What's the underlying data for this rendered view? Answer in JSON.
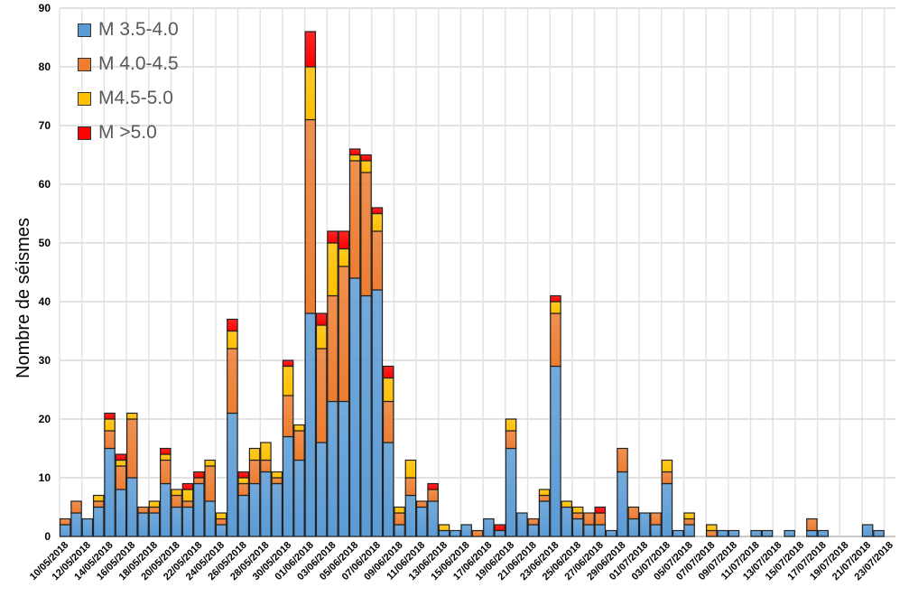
{
  "chart_data": {
    "type": "bar",
    "stacked": true,
    "title": "",
    "xlabel": "",
    "ylabel": "Nombre de séismes",
    "ylim": [
      0,
      90
    ],
    "yticks": [
      0,
      10,
      20,
      30,
      40,
      50,
      60,
      70,
      80,
      90
    ],
    "grid": true,
    "legend_position": "top-left",
    "categories": [
      "10/05/2018",
      "11/05/2018",
      "12/05/2018",
      "13/05/2018",
      "14/05/2018",
      "15/05/2018",
      "16/05/2018",
      "17/05/2018",
      "18/05/2018",
      "19/05/2018",
      "20/05/2018",
      "21/05/2018",
      "22/05/2018",
      "23/05/2018",
      "24/05/2018",
      "25/05/2018",
      "26/05/2018",
      "27/05/2018",
      "28/05/2018",
      "29/05/2018",
      "30/05/2018",
      "31/05/2018",
      "01/06/2018",
      "02/06/2018",
      "03/06/2018",
      "04/06/2018",
      "05/06/2018",
      "06/06/2018",
      "07/06/2018",
      "08/06/2018",
      "09/06/2018",
      "10/06/2018",
      "11/06/2018",
      "12/06/2018",
      "13/06/2018",
      "14/06/2018",
      "15/06/2018",
      "16/06/2018",
      "17/06/2018",
      "18/06/2018",
      "19/06/2018",
      "20/06/2018",
      "21/06/2018",
      "22/06/2018",
      "23/06/2018",
      "24/06/2018",
      "25/06/2018",
      "26/06/2018",
      "27/06/2018",
      "28/06/2018",
      "29/06/2018",
      "30/06/2018",
      "01/07/2018",
      "02/07/2018",
      "03/07/2018",
      "04/07/2018",
      "05/07/2018",
      "06/07/2018",
      "07/07/2018",
      "08/07/2018",
      "09/07/2018",
      "10/07/2018",
      "11/07/2018",
      "12/07/2018",
      "13/07/2018",
      "14/07/2018",
      "15/07/2018",
      "16/07/2018",
      "17/07/2018",
      "18/07/2018",
      "19/07/2018",
      "20/07/2018",
      "21/07/2018",
      "22/07/2018",
      "23/07/2018"
    ],
    "series": [
      {
        "name": "M 3.5-4.0",
        "color": "#5B9BD5",
        "values": [
          2,
          4,
          3,
          5,
          15,
          8,
          10,
          4,
          4,
          9,
          5,
          5,
          9,
          6,
          2,
          21,
          7,
          9,
          11,
          9,
          17,
          13,
          38,
          16,
          23,
          23,
          44,
          41,
          42,
          16,
          2,
          7,
          5,
          6,
          1,
          1,
          2,
          0,
          3,
          1,
          15,
          4,
          2,
          6,
          29,
          5,
          3,
          2,
          2,
          1,
          11,
          3,
          4,
          2,
          9,
          1,
          2,
          0,
          0,
          1,
          1,
          0,
          1,
          1,
          0,
          1,
          0,
          1,
          1,
          0,
          0,
          0,
          2,
          1,
          0
        ]
      },
      {
        "name": "M 4.0-4.5",
        "color": "#ED7D31",
        "values": [
          1,
          2,
          0,
          1,
          3,
          4,
          10,
          1,
          1,
          4,
          2,
          1,
          1,
          6,
          1,
          11,
          2,
          4,
          2,
          1,
          7,
          5,
          33,
          16,
          18,
          23,
          20,
          21,
          10,
          7,
          2,
          3,
          1,
          2,
          0,
          0,
          0,
          1,
          0,
          0,
          3,
          0,
          1,
          1,
          9,
          0,
          1,
          2,
          2,
          0,
          4,
          2,
          0,
          2,
          2,
          0,
          1,
          0,
          1,
          0,
          0,
          0,
          0,
          0,
          0,
          0,
          0,
          2,
          0,
          0,
          0,
          0,
          0,
          0,
          0
        ]
      },
      {
        "name": "M4.5-5.0",
        "color": "#FFC000",
        "values": [
          0,
          0,
          0,
          1,
          2,
          1,
          1,
          0,
          1,
          1,
          1,
          2,
          0,
          1,
          1,
          3,
          1,
          2,
          3,
          1,
          5,
          1,
          9,
          4,
          9,
          3,
          1,
          2,
          3,
          4,
          1,
          3,
          0,
          0,
          1,
          0,
          0,
          0,
          0,
          0,
          2,
          0,
          0,
          1,
          2,
          1,
          1,
          0,
          0,
          0,
          0,
          0,
          0,
          0,
          2,
          0,
          1,
          0,
          1,
          0,
          0,
          0,
          0,
          0,
          0,
          0,
          0,
          0,
          0,
          0,
          0,
          0,
          0,
          0,
          0
        ]
      },
      {
        "name": "M >5.0",
        "color": "#FF0000",
        "values": [
          0,
          0,
          0,
          0,
          1,
          1,
          0,
          0,
          0,
          1,
          0,
          1,
          1,
          0,
          0,
          2,
          1,
          0,
          0,
          0,
          1,
          0,
          6,
          2,
          2,
          3,
          1,
          1,
          1,
          2,
          0,
          0,
          0,
          1,
          0,
          0,
          0,
          0,
          0,
          1,
          0,
          0,
          0,
          0,
          1,
          0,
          0,
          0,
          1,
          0,
          0,
          0,
          0,
          0,
          0,
          0,
          0,
          0,
          0,
          0,
          0,
          0,
          0,
          0,
          0,
          0,
          0,
          0,
          0,
          0,
          0,
          0,
          0,
          0,
          0
        ]
      }
    ]
  }
}
